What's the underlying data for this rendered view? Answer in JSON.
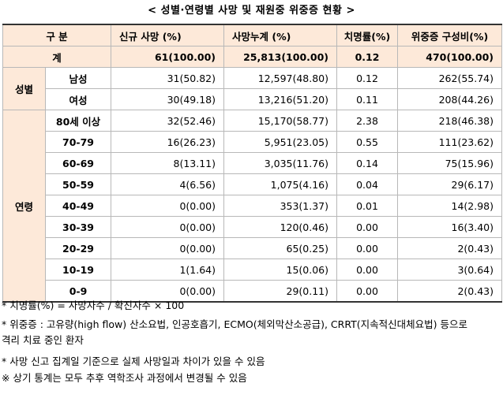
{
  "title": "< 성별·연령별 사망 및 재원중 위중증 현황 >",
  "headers": {
    "category": "구 분",
    "new_deaths": "신규 사망      (%)",
    "cumulative_deaths": "사망누계      (%)",
    "fatality_rate": "치명률(%)",
    "critical": "위중증   구성비(%)"
  },
  "total": {
    "label": "계",
    "new_deaths": "61(100.00)",
    "cumulative_deaths": "25,813(100.00)",
    "fatality_rate": "0.12",
    "critical": "470(100.00)"
  },
  "sex_group_label": "성별",
  "sex_rows": [
    {
      "label": "남성",
      "new_deaths": "31(50.82)",
      "cumulative_deaths": "12,597(48.80)",
      "fatality_rate": "0.12",
      "critical": "262(55.74)"
    },
    {
      "label": "여성",
      "new_deaths": "30(49.18)",
      "cumulative_deaths": "13,216(51.20)",
      "fatality_rate": "0.11",
      "critical": "208(44.26)"
    }
  ],
  "age_group_label": "연령",
  "age_rows": [
    {
      "label": "80세 이상",
      "new_deaths": "32(52.46)",
      "cumulative_deaths": "15,170(58.77)",
      "fatality_rate": "2.38",
      "critical": "218(46.38)"
    },
    {
      "label": "70-79",
      "new_deaths": "16(26.23)",
      "cumulative_deaths": "5,951(23.05)",
      "fatality_rate": "0.55",
      "critical": "111(23.62)"
    },
    {
      "label": "60-69",
      "new_deaths": "8(13.11)",
      "cumulative_deaths": "3,035(11.76)",
      "fatality_rate": "0.14",
      "critical": "75(15.96)"
    },
    {
      "label": "50-59",
      "new_deaths": "4(6.56)",
      "cumulative_deaths": "1,075(4.16)",
      "fatality_rate": "0.04",
      "critical": "29(6.17)"
    },
    {
      "label": "40-49",
      "new_deaths": "0(0.00)",
      "cumulative_deaths": "353(1.37)",
      "fatality_rate": "0.01",
      "critical": "14(2.98)"
    },
    {
      "label": "30-39",
      "new_deaths": "0(0.00)",
      "cumulative_deaths": "120(0.46)",
      "fatality_rate": "0.00",
      "critical": "16(3.40)"
    },
    {
      "label": "20-29",
      "new_deaths": "0(0.00)",
      "cumulative_deaths": "65(0.25)",
      "fatality_rate": "0.00",
      "critical": "2(0.43)"
    },
    {
      "label": "10-19",
      "new_deaths": "1(1.64)",
      "cumulative_deaths": "15(0.06)",
      "fatality_rate": "0.00",
      "critical": "3(0.64)"
    },
    {
      "label": "0-9",
      "new_deaths": "0(0.00)",
      "cumulative_deaths": "29(0.11)",
      "fatality_rate": "0.00",
      "critical": "2(0.43)"
    }
  ],
  "footnotes": [
    "* 치명률(%) = 사망자수 / 확진자수 × 100",
    "* 위중증 : 고유량(high flow) 산소요법, 인공호흡기, ECMO(체외막산소공급), CRRT(지속적신대체요법) 등으로",
    "격리 치료 중인 환자",
    "* 사망 신고 집계일 기준으로 실제 사망일과 차이가 있을 수 있음",
    "※ 상기 통계는 모두 추후 역학조사 과정에서 변경될 수 있음"
  ]
}
